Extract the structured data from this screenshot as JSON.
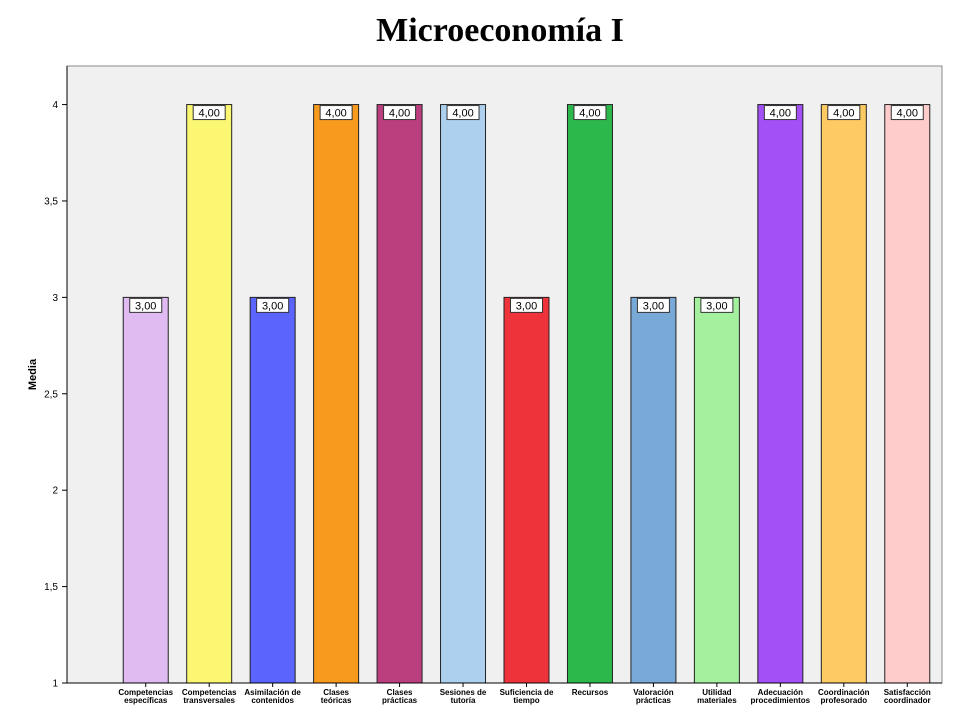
{
  "chart_data": {
    "type": "bar",
    "title": "Microeconomía  I",
    "xlabel": "",
    "ylabel": "Media",
    "ylim": [
      1,
      4.2
    ],
    "yticks": [
      {
        "value": 1,
        "label": "1"
      },
      {
        "value": 1.5,
        "label": "1,5"
      },
      {
        "value": 2,
        "label": "2"
      },
      {
        "value": 2.5,
        "label": "2,5"
      },
      {
        "value": 3,
        "label": "3"
      },
      {
        "value": 3.5,
        "label": "3,5"
      },
      {
        "value": 4,
        "label": "4"
      }
    ],
    "grid": false,
    "categories": [
      [
        "Competencias",
        "específicas"
      ],
      [
        "Competencias",
        "transversales"
      ],
      [
        "Asimilación de",
        "contenidos"
      ],
      [
        "Clases",
        "teóricas"
      ],
      [
        "Clases",
        "prácticas"
      ],
      [
        "Sesiones de",
        "tutoría"
      ],
      [
        "Suficiencia de",
        "tiempo"
      ],
      [
        "Recursos"
      ],
      [
        "Valoración",
        "prácticas"
      ],
      [
        "Utilidad",
        "materiales"
      ],
      [
        "Adecuación",
        "procedimientos"
      ],
      [
        "Coordinación",
        "profesorado"
      ],
      [
        "Satisfacción",
        "coordinador"
      ]
    ],
    "values": [
      3,
      4,
      3,
      4,
      4,
      4,
      3,
      4,
      3,
      3,
      4,
      4,
      4
    ],
    "value_labels": [
      "3,00",
      "4,00",
      "3,00",
      "4,00",
      "4,00",
      "4,00",
      "3,00",
      "4,00",
      "3,00",
      "3,00",
      "4,00",
      "4,00",
      "4,00"
    ],
    "colors": [
      "#dfbbf2",
      "#fbf772",
      "#5b64fd",
      "#f79a1e",
      "#bb3e7f",
      "#acd0ee",
      "#ee333b",
      "#2db84b",
      "#79a9d6",
      "#a4f09e",
      "#a350f6",
      "#fdca63",
      "#fdcccb"
    ],
    "plot_background": "#f0f0f0"
  }
}
